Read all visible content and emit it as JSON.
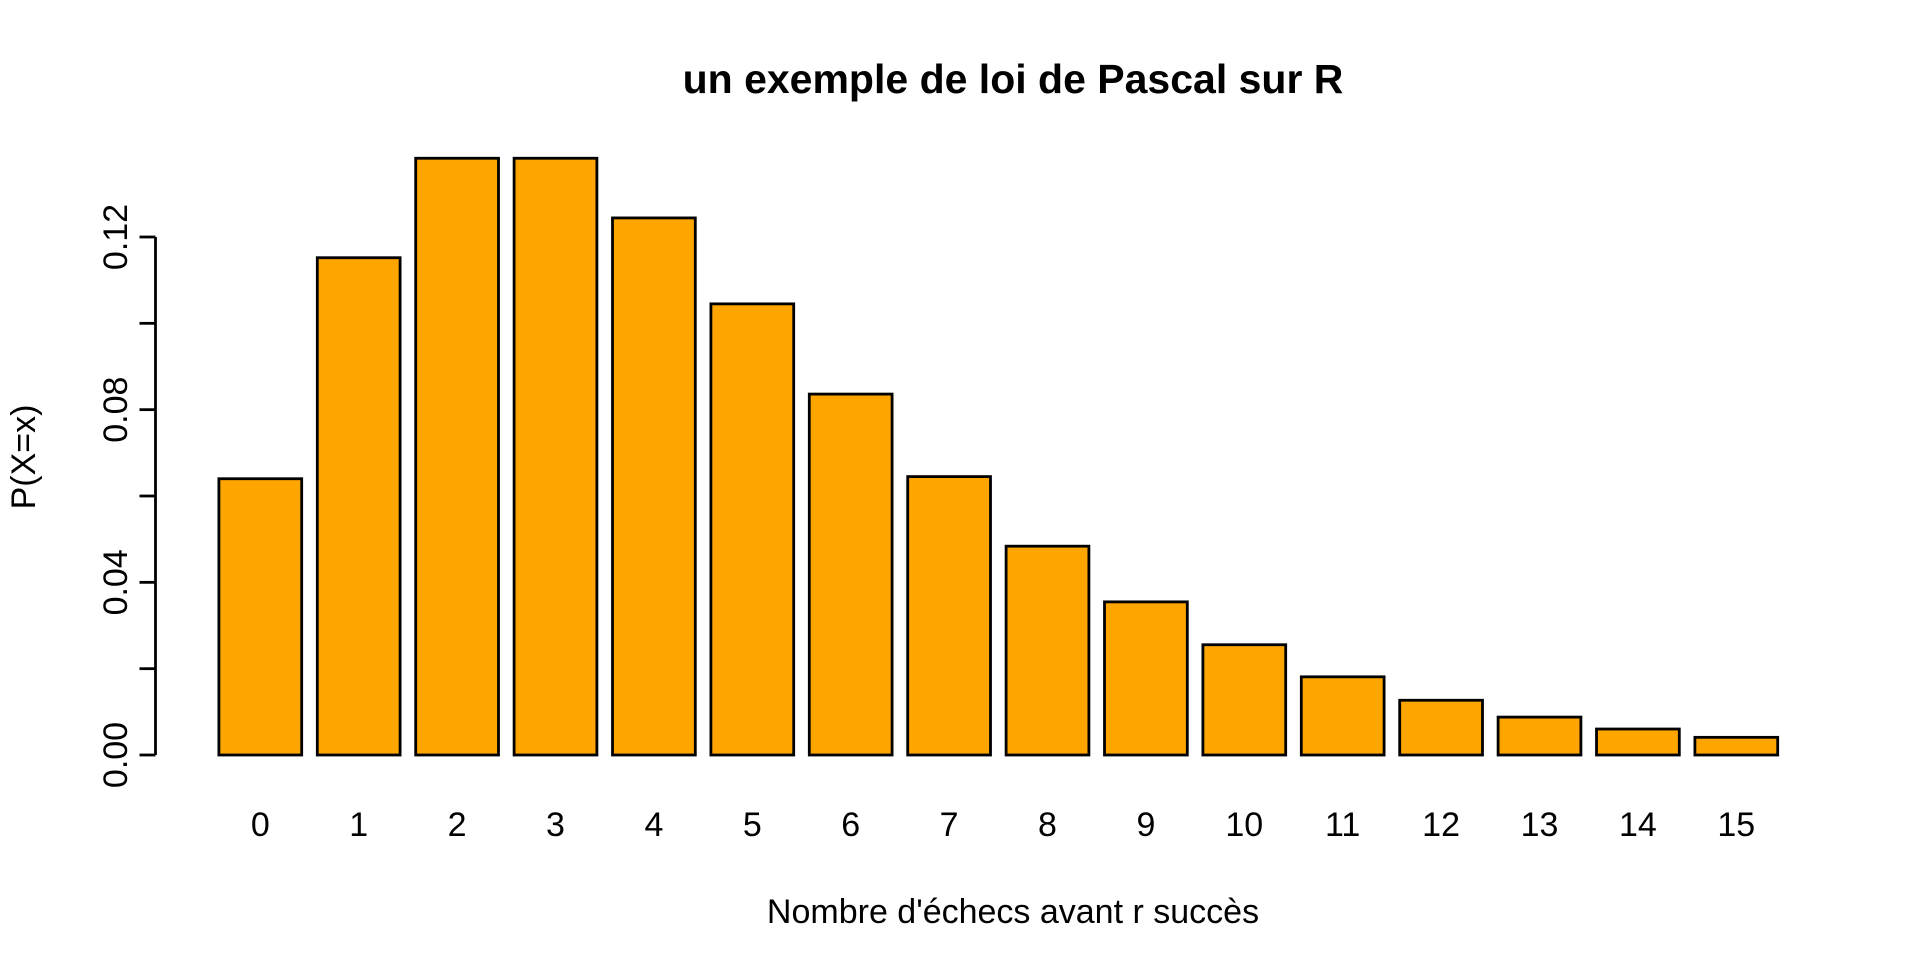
{
  "chart_data": {
    "type": "bar",
    "title": "un exemple de loi de Pascal sur R",
    "xlabel": "Nombre d'échecs avant r succès",
    "ylabel": "P(X=x)",
    "categories": [
      "0",
      "1",
      "2",
      "3",
      "4",
      "5",
      "6",
      "7",
      "8",
      "9",
      "10",
      "11",
      "12",
      "13",
      "14",
      "15"
    ],
    "values": [
      0.064,
      0.1152,
      0.13824,
      0.13824,
      0.124416,
      0.104509,
      0.083608,
      0.064497,
      0.048373,
      0.035473,
      0.025541,
      0.018111,
      0.012678,
      0.008777,
      0.006018,
      0.004092
    ],
    "y_ticks": [
      0.0,
      0.02,
      0.04,
      0.06,
      0.08,
      0.1,
      0.12
    ],
    "y_tick_labels": [
      "0.00",
      "",
      "0.04",
      "",
      "0.08",
      "",
      "0.12"
    ],
    "ylim": [
      0,
      0.14
    ],
    "grid": false,
    "legend": "none",
    "bar_fill": "#FFA500",
    "bar_stroke": "#000000",
    "axis_color": "#000000",
    "text_color": "#000000",
    "background": "#FFFFFF"
  }
}
